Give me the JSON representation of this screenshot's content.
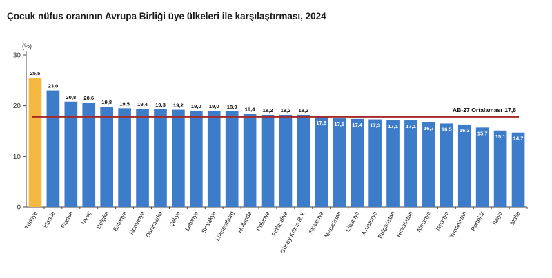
{
  "chart_data": {
    "type": "bar",
    "title": "Çocuk nüfus oranının Avrupa Birliği üye ülkeleri ile karşılaştırması, 2024",
    "ylabel": "(%)",
    "ylim": [
      0,
      30
    ],
    "yticks": [
      0,
      10,
      20,
      30
    ],
    "grid": false,
    "categories": [
      "Türkiye",
      "İrlanda",
      "Fransa",
      "İsveç",
      "Belçika",
      "Estonya",
      "Romanya",
      "Danimarka",
      "Çekya",
      "Letonya",
      "Slovakya",
      "Lüksemburg",
      "Hollanda",
      "Polonya",
      "Finlandiya",
      "Güney Kıbrıs R.Y.",
      "Slovenya",
      "Macaristan",
      "Litvanya",
      "Avusturya",
      "Bulgaristan",
      "Hırvatistan",
      "Almanya",
      "İspanya",
      "Yunanistan",
      "Portekiz",
      "İtalya",
      "Malta"
    ],
    "values": [
      25.5,
      23.0,
      20.8,
      20.6,
      19.8,
      19.5,
      19.4,
      19.3,
      19.2,
      19.0,
      19.0,
      18.9,
      18.4,
      18.2,
      18.2,
      18.2,
      17.8,
      17.5,
      17.4,
      17.3,
      17.1,
      17.1,
      16.7,
      16.5,
      16.3,
      15.7,
      15.1,
      14.7
    ],
    "value_labels": [
      "25,5",
      "23,0",
      "20,8",
      "20,6",
      "19,8",
      "19,5",
      "19,4",
      "19,3",
      "19,2",
      "19,0",
      "19,0",
      "18,9",
      "18,4",
      "18,2",
      "18,2",
      "18,2",
      "17,8",
      "17,5",
      "17,4",
      "17,3",
      "17,1",
      "17,1",
      "16,7",
      "16,5",
      "16,3",
      "15,7",
      "15,1",
      "14,7"
    ],
    "highlight": "Türkiye",
    "reference_line": {
      "label": "AB-27 Ortalaması",
      "value": 17.8,
      "value_label": "17,8"
    },
    "colors": {
      "bar": "#3d7cc9",
      "highlight": "#f5b942",
      "reference": "#a52a2a",
      "label_outside": "#111111",
      "label_inside": "#ffffff"
    }
  }
}
